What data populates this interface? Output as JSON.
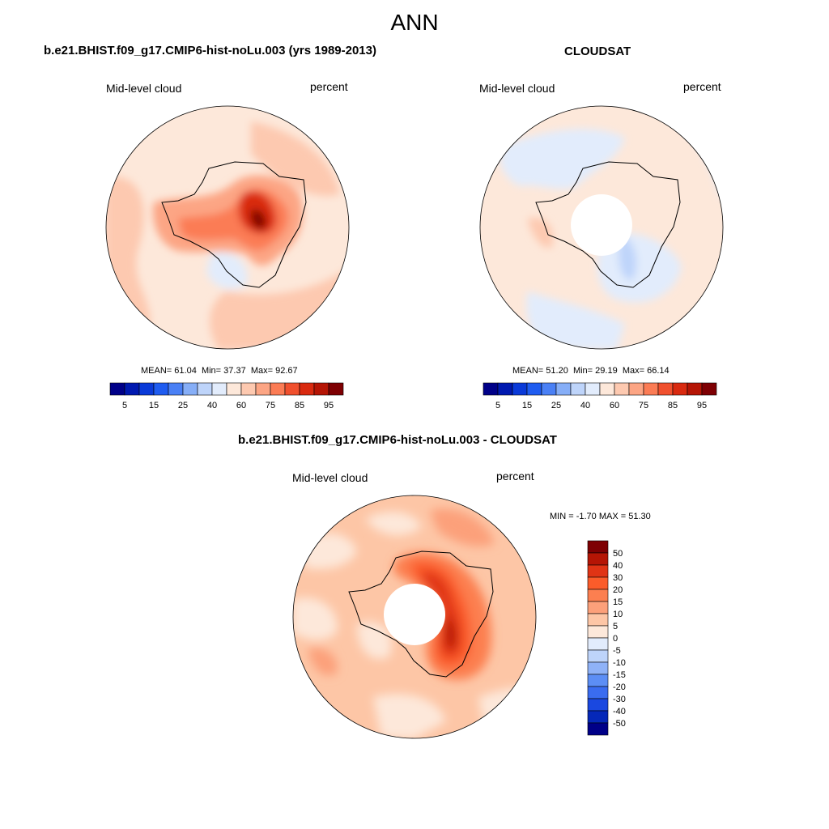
{
  "season": "ANN",
  "panels": [
    {
      "title": "b.e21.BHIST.f09_g17.CMIP6-hist-noLu.003 (yrs 1989-2013)",
      "left_label": "Mid-level cloud",
      "right_label": "percent",
      "stats": {
        "mean_label": "MEAN=",
        "mean": "61.04",
        "min_label": "Min=",
        "min": "37.37",
        "max_label": "Max=",
        "max": "92.67"
      },
      "has_hole": false
    },
    {
      "title": "CLOUDSAT",
      "left_label": "Mid-level cloud",
      "right_label": "percent",
      "stats": {
        "mean_label": "MEAN=",
        "mean": "51.20",
        "min_label": "Min=",
        "min": "29.19",
        "max_label": "Max=",
        "max": "66.14"
      },
      "has_hole": true
    }
  ],
  "diff_panel": {
    "title": "b.e21.BHIST.f09_g17.CMIP6-hist-noLu.003 - CLOUDSAT",
    "left_label": "Mid-level cloud",
    "right_label": "percent",
    "stats": {
      "min_label": "MIN =",
      "min": "-1.70",
      "max_label": "MAX =",
      "max": "51.30"
    },
    "has_hole": true
  },
  "colorbar_main": {
    "colors": [
      "#000088",
      "#0019b0",
      "#0a3ad8",
      "#1f5cf0",
      "#4a80f5",
      "#86aef7",
      "#bed4fa",
      "#e2ecfc",
      "#fde8da",
      "#fdc9b0",
      "#fca584",
      "#fb7c55",
      "#f0502e",
      "#d92a10",
      "#b51505",
      "#7e0003"
    ],
    "tick_labels": [
      "5",
      "15",
      "25",
      "40",
      "60",
      "75",
      "85",
      "95"
    ]
  },
  "colorbar_diff": {
    "colors": [
      "#7e0003",
      "#b51505",
      "#e03415",
      "#fb5c2a",
      "#fc7f50",
      "#fca07a",
      "#fdc6a6",
      "#fde8da",
      "#e2ecfc",
      "#bed4fa",
      "#8fb2f7",
      "#5c8ef5",
      "#3a6cf0",
      "#1a48e0",
      "#0528b8",
      "#000088"
    ],
    "tick_labels": [
      "50",
      "40",
      "30",
      "20",
      "15",
      "10",
      "5",
      "0",
      "-5",
      "-10",
      "-15",
      "-20",
      "-30",
      "-40",
      "-50"
    ]
  },
  "chart_data": [
    {
      "type": "heatmap",
      "title": "b.e21.BHIST.f09_g17.CMIP6-hist-noLu.003 (yrs 1989-2013)",
      "variable": "Mid-level cloud",
      "units": "percent",
      "mean": 61.04,
      "min": 37.37,
      "max": 92.67,
      "colorbar_ticks": [
        5,
        15,
        25,
        40,
        60,
        75,
        85,
        95
      ]
    },
    {
      "type": "heatmap",
      "title": "CLOUDSAT",
      "variable": "Mid-level cloud",
      "units": "percent",
      "mean": 51.2,
      "min": 29.19,
      "max": 66.14,
      "colorbar_ticks": [
        5,
        15,
        25,
        40,
        60,
        75,
        85,
        95
      ]
    },
    {
      "type": "heatmap",
      "title": "b.e21.BHIST.f09_g17.CMIP6-hist-noLu.003 - CLOUDSAT",
      "variable": "Mid-level cloud",
      "units": "percent",
      "min": -1.7,
      "max": 51.3,
      "colorbar_ticks": [
        50,
        40,
        30,
        20,
        15,
        10,
        5,
        0,
        -5,
        -10,
        -15,
        -20,
        -30,
        -40,
        -50
      ]
    }
  ]
}
